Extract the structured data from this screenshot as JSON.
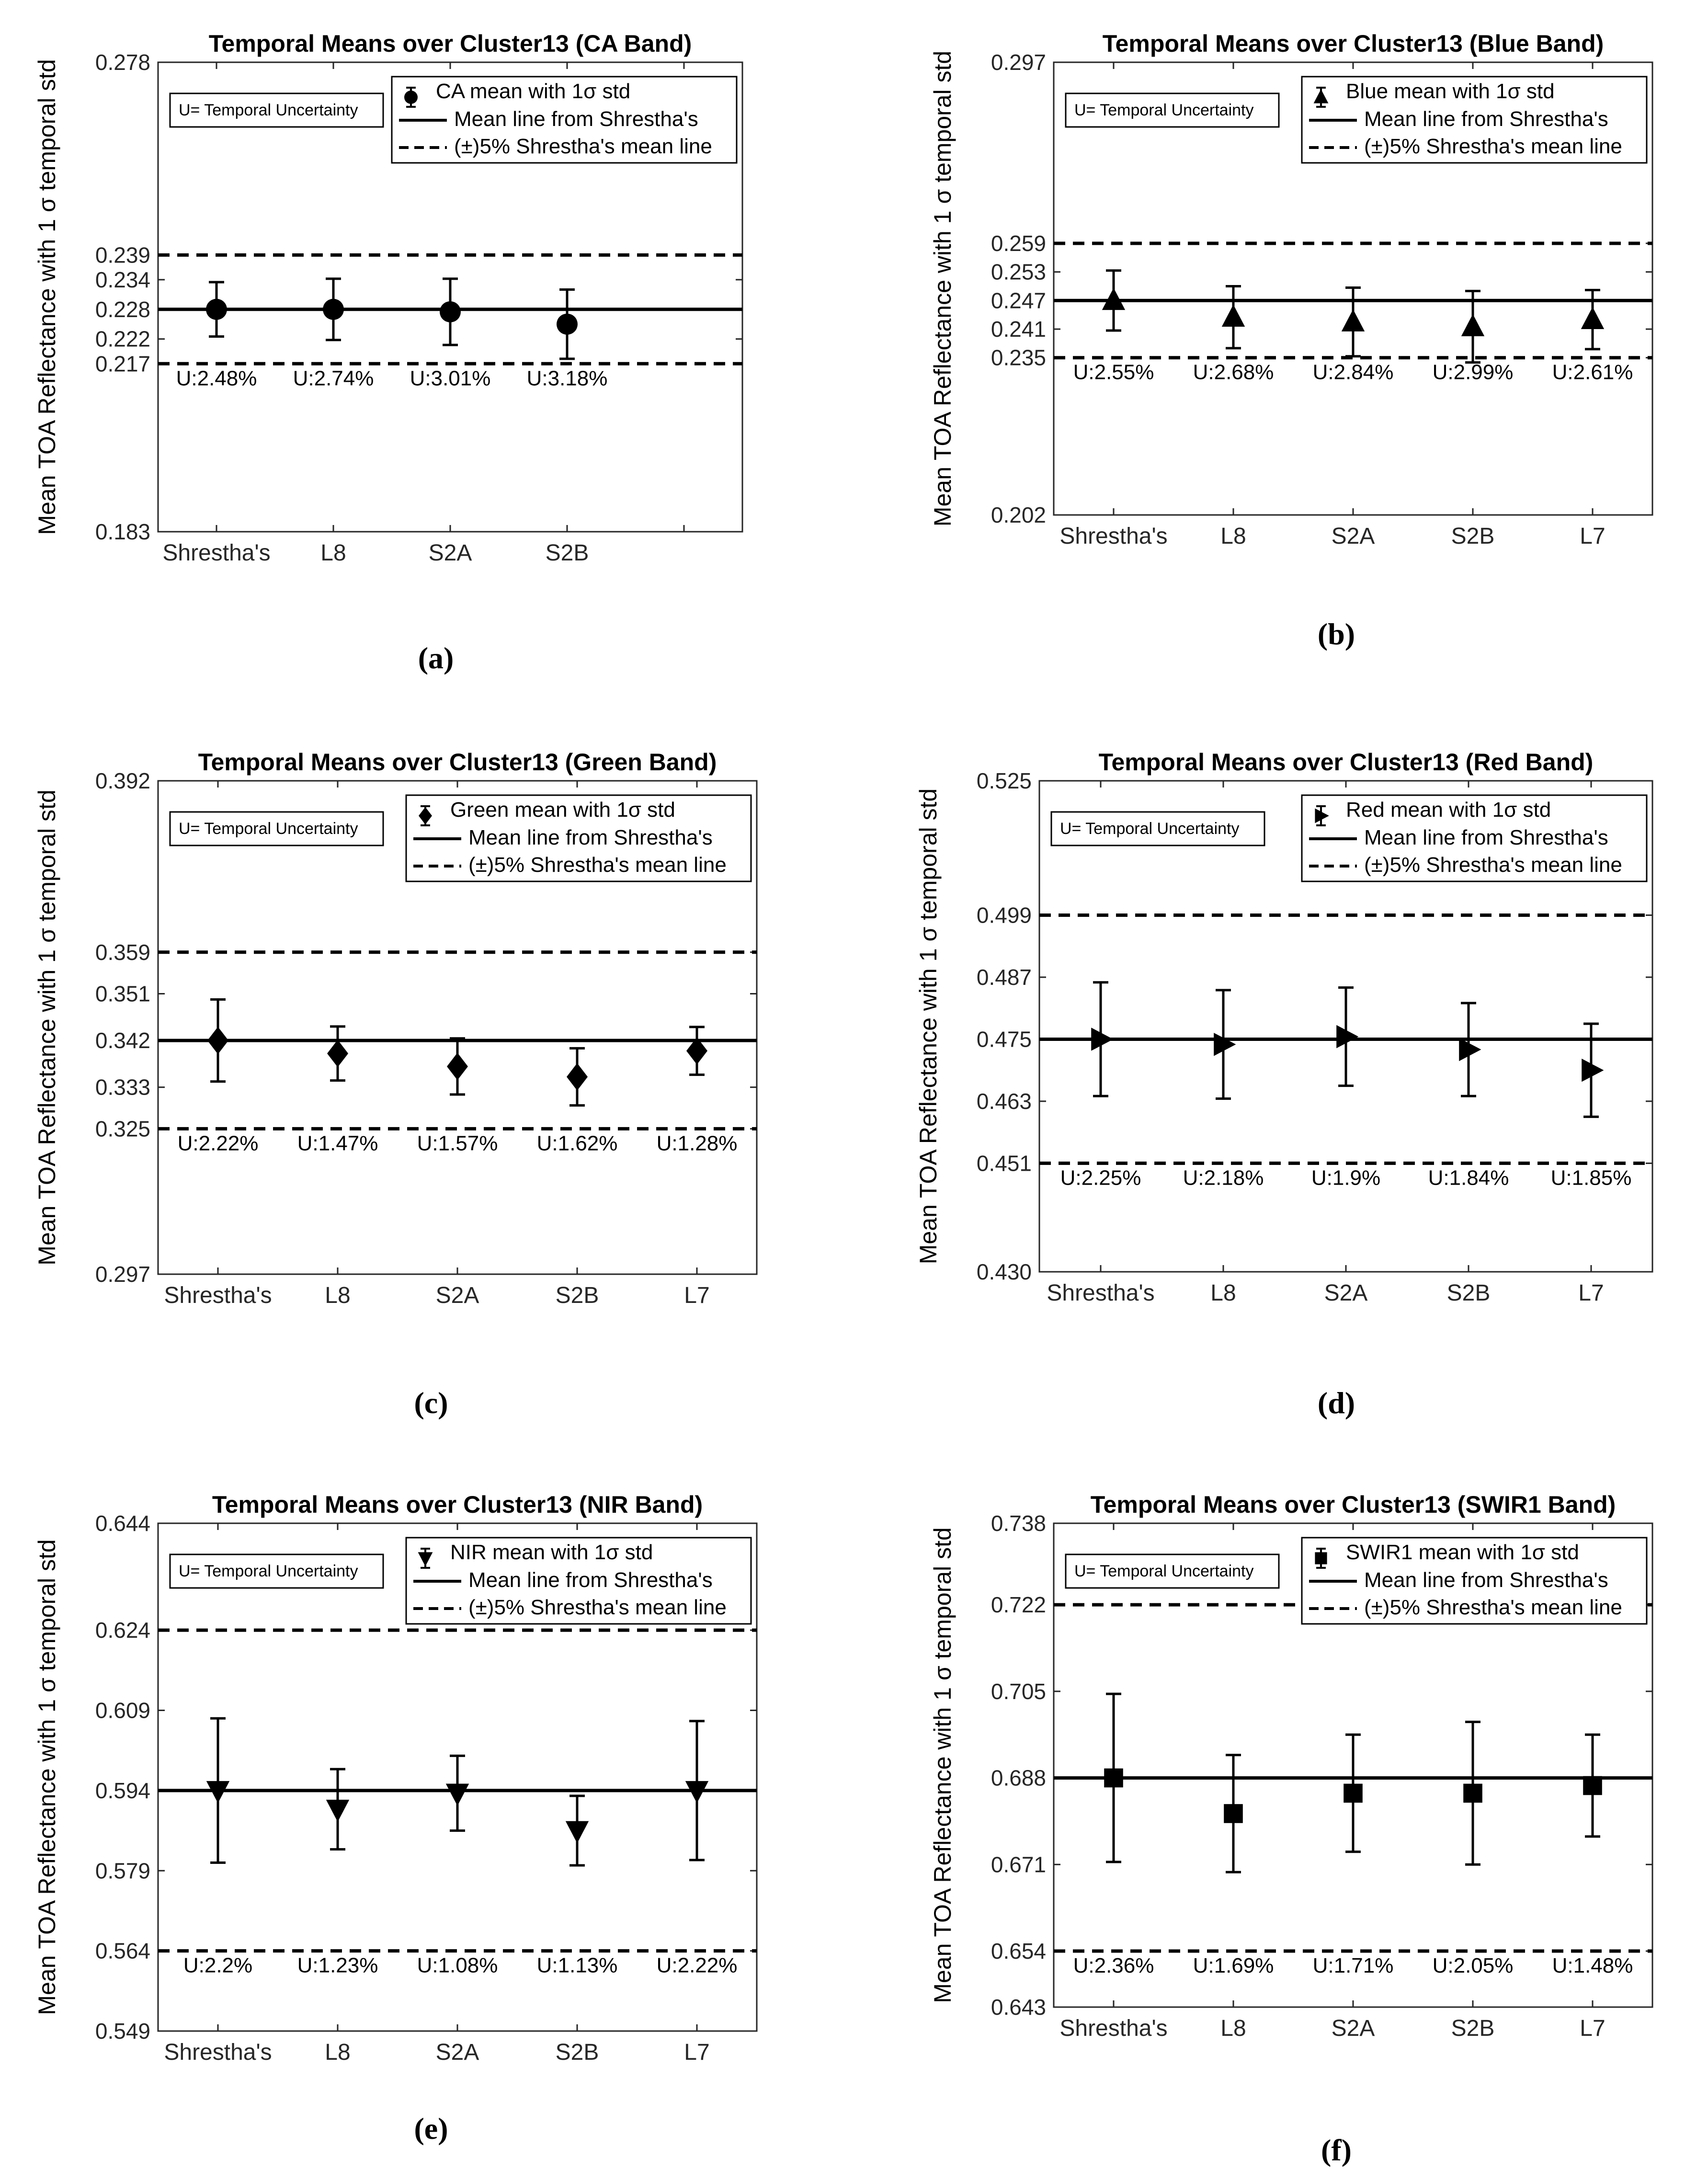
{
  "chart_data": [
    {
      "type": "errorbar",
      "panel_label": "(a)",
      "title": "Temporal Means over Cluster13 (CA Band)",
      "ylabel": "Mean TOA Reflectance with 1 σ temporal std",
      "ylim": [
        0.183,
        0.278
      ],
      "yticks": [
        "0.183",
        "0.217",
        "0.222",
        "0.228",
        "0.234",
        "0.239",
        "0.278"
      ],
      "categories": [
        "Shrestha's",
        "L8",
        "S2A",
        "S2B"
      ],
      "slots": 5,
      "marker": "circle",
      "values": [
        0.228,
        0.228,
        0.2275,
        0.225
      ],
      "std": [
        0.0055,
        0.0062,
        0.0067,
        0.007
      ],
      "uncertainty": [
        "U:2.48%",
        "U:2.74%",
        "U:3.01%",
        "U:3.18%"
      ],
      "mean_line": 0.228,
      "band_lines": [
        0.239,
        0.217
      ],
      "u_note": "U= Temporal Uncertainty",
      "legend": [
        "CA mean with 1σ std",
        "Mean line from Shrestha's",
        "(±)5% Shrestha's mean line"
      ]
    },
    {
      "type": "errorbar",
      "panel_label": "(b)",
      "title": "Temporal Means over Cluster13 (Blue Band)",
      "ylabel": "Mean TOA Reflectance with 1 σ temporal std",
      "ylim": [
        0.202,
        0.297
      ],
      "yticks": [
        "0.202",
        "0.235",
        "0.241",
        "0.247",
        "0.253",
        "0.259",
        "0.297"
      ],
      "categories": [
        "Shrestha's",
        "L8",
        "S2A",
        "S2B",
        "L7"
      ],
      "slots": 5,
      "marker": "triangle-up",
      "values": [
        0.247,
        0.2435,
        0.2425,
        0.2415,
        0.243
      ],
      "std": [
        0.0063,
        0.0065,
        0.0072,
        0.0075,
        0.0062
      ],
      "uncertainty": [
        "U:2.55%",
        "U:2.68%",
        "U:2.84%",
        "U:2.99%",
        "U:2.61%"
      ],
      "mean_line": 0.247,
      "band_lines": [
        0.259,
        0.235
      ],
      "u_note": "U= Temporal Uncertainty",
      "legend": [
        "Blue mean with 1σ std",
        "Mean line from Shrestha's",
        "(±)5% Shrestha's mean line"
      ]
    },
    {
      "type": "errorbar",
      "panel_label": "(c)",
      "title": "Temporal Means over Cluster13 (Green Band)",
      "ylabel": "Mean TOA Reflectance with 1 σ temporal std",
      "ylim": [
        0.297,
        0.392
      ],
      "yticks": [
        "0.297",
        "0.325",
        "0.333",
        "0.342",
        "0.351",
        "0.359",
        "0.392"
      ],
      "categories": [
        "Shrestha's",
        "L8",
        "S2A",
        "S2B",
        "L7"
      ],
      "slots": 5,
      "marker": "diamond",
      "values": [
        0.342,
        0.3395,
        0.337,
        0.335,
        0.34
      ],
      "std": [
        0.0079,
        0.0052,
        0.0054,
        0.0055,
        0.0046
      ],
      "uncertainty": [
        "U:2.22%",
        "U:1.47%",
        "U:1.57%",
        "U:1.62%",
        "U:1.28%"
      ],
      "mean_line": 0.342,
      "band_lines": [
        0.359,
        0.325
      ],
      "u_note": "U= Temporal Uncertainty",
      "legend": [
        "Green mean with 1σ std",
        "Mean line from Shrestha's",
        "(±)5% Shrestha's mean line"
      ]
    },
    {
      "type": "errorbar",
      "panel_label": "(d)",
      "title": "Temporal Means over Cluster13 (Red Band)",
      "ylabel": "Mean TOA Reflectance with 1 σ temporal std",
      "ylim": [
        0.43,
        0.525
      ],
      "yticks": [
        "0.430",
        "0.451",
        "0.463",
        "0.475",
        "0.487",
        "0.499",
        "0.525"
      ],
      "categories": [
        "Shrestha's",
        "L8",
        "S2A",
        "S2B",
        "L7"
      ],
      "slots": 5,
      "marker": "triangle-right",
      "values": [
        0.475,
        0.474,
        0.4755,
        0.473,
        0.469
      ],
      "std": [
        0.011,
        0.0105,
        0.0095,
        0.009,
        0.009
      ],
      "uncertainty": [
        "U:2.25%",
        "U:2.18%",
        "U:1.9%",
        "U:1.84%",
        "U:1.85%"
      ],
      "mean_line": 0.475,
      "band_lines": [
        0.499,
        0.451
      ],
      "u_note": "U= Temporal Uncertainty",
      "legend": [
        "Red mean with 1σ std",
        "Mean line from Shrestha's",
        "(±)5% Shrestha's mean line"
      ]
    },
    {
      "type": "errorbar",
      "panel_label": "(e)",
      "title": "Temporal Means over Cluster13 (NIR Band)",
      "ylabel": "Mean TOA Reflectance with 1 σ temporal std",
      "ylim": [
        0.549,
        0.644
      ],
      "yticks": [
        "0.549",
        "0.564",
        "0.579",
        "0.594",
        "0.609",
        "0.624",
        "0.644"
      ],
      "categories": [
        "Shrestha's",
        "L8",
        "S2A",
        "S2B",
        "L7"
      ],
      "slots": 5,
      "marker": "triangle-down",
      "values": [
        0.594,
        0.5905,
        0.5935,
        0.5865,
        0.594
      ],
      "std": [
        0.0135,
        0.0075,
        0.007,
        0.0065,
        0.013
      ],
      "uncertainty": [
        "U:2.2%",
        "U:1.23%",
        "U:1.08%",
        "U:1.13%",
        "U:2.22%"
      ],
      "mean_line": 0.594,
      "band_lines": [
        0.624,
        0.564
      ],
      "u_note": "U= Temporal Uncertainty",
      "legend": [
        "NIR mean with 1σ std",
        "Mean line from Shrestha's",
        "(±)5% Shrestha's mean line"
      ]
    },
    {
      "type": "errorbar",
      "panel_label": "(f)",
      "title": "Temporal Means over Cluster13 (SWIR1 Band)",
      "ylabel": "Mean TOA Reflectance with 1 σ temporal std",
      "ylim": [
        0.643,
        0.738
      ],
      "yticks": [
        "0.643",
        "0.654",
        "0.671",
        "0.688",
        "0.705",
        "0.722",
        "0.738"
      ],
      "categories": [
        "Shrestha's",
        "L8",
        "S2A",
        "S2B",
        "L7"
      ],
      "slots": 5,
      "marker": "square",
      "values": [
        0.688,
        0.681,
        0.685,
        0.685,
        0.6865
      ],
      "std": [
        0.0165,
        0.0115,
        0.0115,
        0.014,
        0.01
      ],
      "uncertainty": [
        "U:2.36%",
        "U:1.69%",
        "U:1.71%",
        "U:2.05%",
        "U:1.48%"
      ],
      "mean_line": 0.688,
      "band_lines": [
        0.722,
        0.654
      ],
      "u_note": "U= Temporal Uncertainty",
      "legend": [
        "SWIR1 mean with 1σ std",
        "Mean line from Shrestha's",
        "(±)5% Shrestha's mean line"
      ]
    }
  ]
}
